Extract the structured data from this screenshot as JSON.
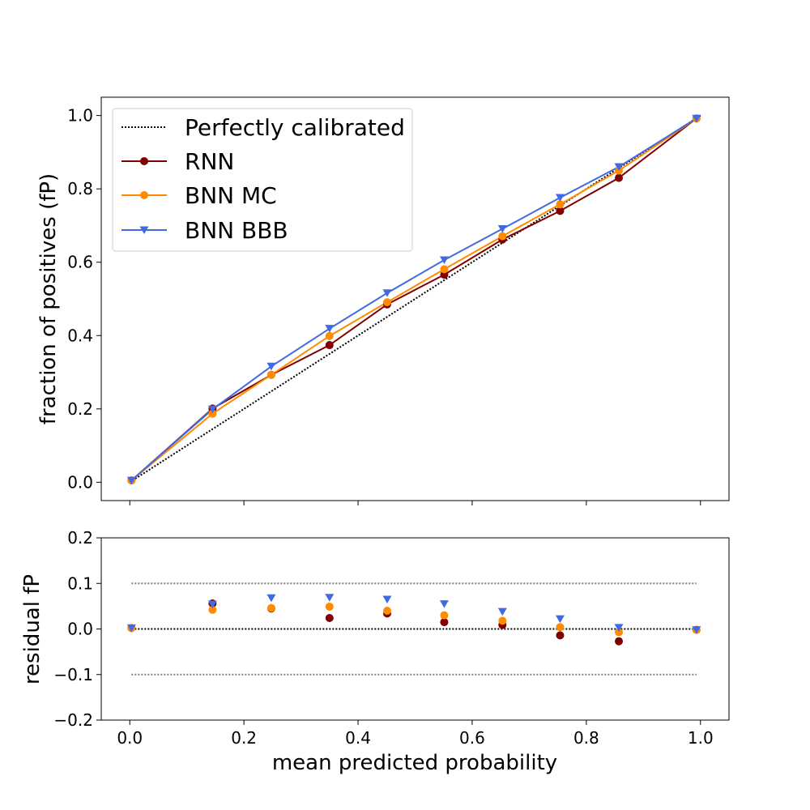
{
  "chart_data": [
    {
      "type": "line",
      "name": "calibration-curve",
      "xlabel": "",
      "ylabel": "fraction of positives (fP)",
      "xlim": [
        -0.05,
        1.05
      ],
      "ylim": [
        -0.05,
        1.05
      ],
      "xticks": [
        0.0,
        0.2,
        0.4,
        0.6,
        0.8,
        1.0
      ],
      "yticks": [
        0.0,
        0.2,
        0.4,
        0.6,
        0.8,
        1.0
      ],
      "ytick_labels": [
        "0.0",
        "0.2",
        "0.4",
        "0.6",
        "0.8",
        "1.0"
      ],
      "legend_position": "top-left",
      "reference": {
        "name": "Perfectly calibrated",
        "x": [
          0,
          1
        ],
        "y": [
          0,
          1
        ],
        "color": "#000000",
        "style": "dotted"
      },
      "x": [
        0.003,
        0.145,
        0.248,
        0.35,
        0.451,
        0.551,
        0.653,
        0.754,
        0.857,
        0.993
      ],
      "series": [
        {
          "name": "RNN",
          "color": "#800000",
          "marker": "circle",
          "values": [
            0.005,
            0.201,
            0.293,
            0.374,
            0.485,
            0.566,
            0.662,
            0.74,
            0.83,
            0.992
          ]
        },
        {
          "name": "BNN MC",
          "color": "#ff8c00",
          "marker": "circle",
          "values": [
            0.005,
            0.187,
            0.293,
            0.399,
            0.491,
            0.581,
            0.671,
            0.758,
            0.85,
            0.992
          ]
        },
        {
          "name": "BNN BBB",
          "color": "#4169e1",
          "marker": "triangle-down",
          "values": [
            0.005,
            0.199,
            0.316,
            0.419,
            0.516,
            0.606,
            0.691,
            0.776,
            0.86,
            0.992
          ]
        }
      ]
    },
    {
      "type": "scatter",
      "name": "residual-plot",
      "xlabel": "mean predicted probability",
      "ylabel": "residual fP",
      "xlim": [
        -0.05,
        1.05
      ],
      "ylim": [
        -0.2,
        0.2
      ],
      "xticks": [
        0.0,
        0.2,
        0.4,
        0.6,
        0.8,
        1.0
      ],
      "xtick_labels": [
        "0.0",
        "0.2",
        "0.4",
        "0.6",
        "0.8",
        "1.0"
      ],
      "yticks": [
        -0.2,
        -0.1,
        0.0,
        0.1,
        0.2
      ],
      "ytick_labels": [
        "−0.2",
        "−0.1",
        "0.0",
        "0.1",
        "0.2"
      ],
      "reference_lines": [
        {
          "y": 0.1,
          "color": "#808080",
          "style": "dotted"
        },
        {
          "y": -0.1,
          "color": "#808080",
          "style": "dotted"
        },
        {
          "y": 0.0,
          "color": "#000000",
          "style": "dotted"
        }
      ],
      "x": [
        0.003,
        0.145,
        0.248,
        0.35,
        0.451,
        0.551,
        0.653,
        0.754,
        0.857,
        0.993
      ],
      "series": [
        {
          "name": "RNN",
          "color": "#800000",
          "marker": "circle",
          "values": [
            0.002,
            0.056,
            0.045,
            0.024,
            0.034,
            0.015,
            0.009,
            -0.014,
            -0.027,
            -0.002
          ]
        },
        {
          "name": "BNN MC",
          "color": "#ff8c00",
          "marker": "circle",
          "values": [
            0.002,
            0.042,
            0.046,
            0.049,
            0.04,
            0.03,
            0.018,
            0.004,
            -0.007,
            -0.002
          ]
        },
        {
          "name": "BNN BBB",
          "color": "#4169e1",
          "marker": "triangle-down",
          "values": [
            0.002,
            0.054,
            0.068,
            0.069,
            0.065,
            0.055,
            0.038,
            0.022,
            0.003,
            -0.002
          ]
        }
      ]
    }
  ]
}
